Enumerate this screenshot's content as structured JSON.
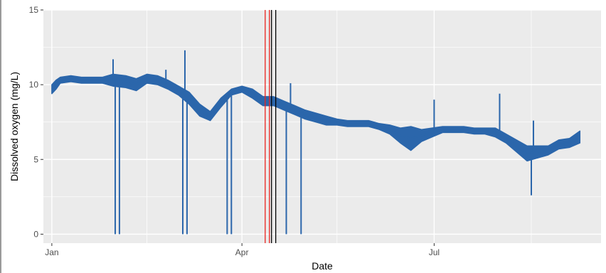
{
  "chart_data": {
    "type": "line",
    "title": "",
    "xlabel": "Date",
    "ylabel": "Dissolved oxygen (mg/L)",
    "x_unit": "date",
    "xlim": [
      "2020-12-28",
      "2021-09-18"
    ],
    "ylim": [
      -0.6,
      15
    ],
    "x_ticks": [
      {
        "label": "Jan",
        "date": "2021-01-01"
      },
      {
        "label": "Apr",
        "date": "2021-04-01"
      },
      {
        "label": "Jul",
        "date": "2021-07-01"
      }
    ],
    "x_minor_ticks": [
      "2021-02-15",
      "2021-05-16",
      "2021-08-16"
    ],
    "y_ticks": [
      0,
      5,
      10,
      15
    ],
    "y_minor_ticks": [
      2.5,
      7.5,
      12.5
    ],
    "grid": true,
    "legend": "none",
    "colors": {
      "panel_background": "#ebebeb",
      "grid": "#ffffff",
      "series": "#2b66ab",
      "marker_red": "#e8221d",
      "marker_black": "#000000"
    },
    "series": [
      {
        "x": [
          "2021-01-01",
          "2021-01-03",
          "2021-01-05",
          "2021-01-10",
          "2021-01-15",
          "2021-01-20",
          "2021-01-25",
          "2021-01-30",
          "2021-02-05",
          "2021-02-10",
          "2021-02-15",
          "2021-02-20",
          "2021-02-25",
          "2021-03-02",
          "2021-03-07",
          "2021-03-12",
          "2021-03-17",
          "2021-03-22",
          "2021-03-27",
          "2021-04-01",
          "2021-04-06",
          "2021-04-11",
          "2021-04-16",
          "2021-04-21",
          "2021-04-26",
          "2021-05-01",
          "2021-05-06",
          "2021-05-11",
          "2021-05-16",
          "2021-05-21",
          "2021-05-26",
          "2021-05-31",
          "2021-06-05",
          "2021-06-10",
          "2021-06-15",
          "2021-06-20",
          "2021-06-25",
          "2021-06-30",
          "2021-07-05",
          "2021-07-10",
          "2021-07-15",
          "2021-07-20",
          "2021-07-25",
          "2021-07-30",
          "2021-08-04",
          "2021-08-09",
          "2021-08-14",
          "2021-08-19",
          "2021-08-24",
          "2021-08-29",
          "2021-09-03",
          "2021-09-08"
        ],
        "y": [
          9.7,
          10.0,
          10.3,
          10.4,
          10.3,
          10.3,
          10.3,
          10.3,
          10.2,
          10.0,
          10.4,
          10.3,
          10.0,
          9.6,
          9.1,
          8.3,
          7.9,
          8.8,
          9.5,
          9.7,
          9.4,
          8.9,
          8.9,
          8.6,
          8.3,
          8.0,
          7.8,
          7.6,
          7.5,
          7.4,
          7.4,
          7.4,
          7.2,
          7.0,
          6.6,
          6.4,
          6.6,
          6.8,
          7.0,
          7.0,
          7.0,
          6.9,
          6.9,
          6.8,
          6.4,
          5.9,
          5.4,
          5.5,
          5.6,
          6.0,
          6.1,
          6.5
        ],
        "band_halfwidth": [
          0.3,
          0.3,
          0.2,
          0.2,
          0.2,
          0.2,
          0.2,
          0.4,
          0.4,
          0.4,
          0.3,
          0.3,
          0.3,
          0.3,
          0.4,
          0.4,
          0.3,
          0.3,
          0.2,
          0.2,
          0.3,
          0.3,
          0.3,
          0.3,
          0.3,
          0.3,
          0.3,
          0.3,
          0.2,
          0.2,
          0.2,
          0.2,
          0.2,
          0.3,
          0.5,
          0.8,
          0.4,
          0.3,
          0.2,
          0.2,
          0.2,
          0.2,
          0.2,
          0.3,
          0.3,
          0.4,
          0.5,
          0.4,
          0.3,
          0.3,
          0.3,
          0.4
        ]
      }
    ],
    "spikes": [
      {
        "date": "2021-01-30",
        "y": 11.7
      },
      {
        "date": "2021-03-05",
        "y": 12.3
      },
      {
        "date": "2021-02-24",
        "y": 11.0
      },
      {
        "date": "2021-04-24",
        "y": 10.1
      },
      {
        "date": "2021-07-01",
        "y": 9.0
      },
      {
        "date": "2021-08-01",
        "y": 9.4
      },
      {
        "date": "2021-08-17",
        "y": 7.6
      }
    ],
    "dropouts": [
      {
        "date": "2021-01-31",
        "y": 0
      },
      {
        "date": "2021-02-02",
        "y": 0
      },
      {
        "date": "2021-03-04",
        "y": 0
      },
      {
        "date": "2021-03-06",
        "y": 0
      },
      {
        "date": "2021-03-25",
        "y": 0
      },
      {
        "date": "2021-03-27",
        "y": 0
      },
      {
        "date": "2021-04-22",
        "y": 0
      },
      {
        "date": "2021-04-29",
        "y": 0
      },
      {
        "date": "2021-08-16",
        "y": 2.6
      }
    ],
    "reference_lines": [
      {
        "date": "2021-04-12",
        "color": "red"
      },
      {
        "date": "2021-04-14",
        "color": "red"
      },
      {
        "date": "2021-04-15",
        "color": "black"
      },
      {
        "date": "2021-04-17",
        "color": "black"
      }
    ]
  }
}
